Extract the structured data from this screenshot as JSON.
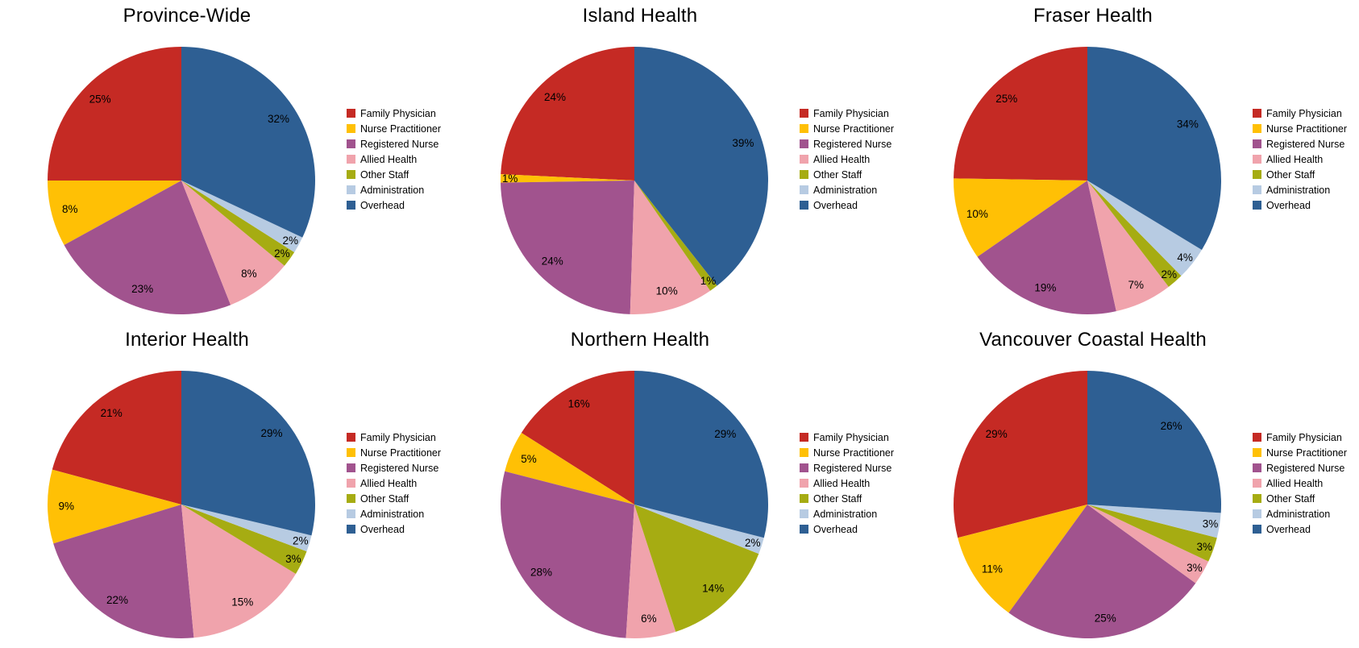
{
  "chart_data": {
    "type": "pie",
    "layout": "2x3 grid of pies, each with legend on the right, slices start at 12 o'clock and run counter-clockwise in legend order, no visible axis or grid, white background",
    "percent_label_suffix": "%",
    "categories": [
      "Family Physician",
      "Nurse Practitioner",
      "Registered Nurse",
      "Allied Health",
      "Other Staff",
      "Administration",
      "Overhead"
    ],
    "colors": [
      "#C52A24",
      "#FFC005",
      "#A1538E",
      "#F0A3AC",
      "#A6AC12",
      "#B7CBE2",
      "#2E5F93"
    ],
    "legend_position": "right",
    "charts": [
      {
        "title": "Province-Wide",
        "values": [
          25,
          8,
          23,
          8,
          2,
          2,
          32
        ]
      },
      {
        "title": "Island Health",
        "values": [
          24,
          1,
          24,
          10,
          1,
          0,
          39
        ]
      },
      {
        "title": "Fraser Health",
        "values": [
          25,
          10,
          19,
          7,
          2,
          4,
          34
        ]
      },
      {
        "title": "Interior Health",
        "values": [
          21,
          9,
          22,
          15,
          3,
          2,
          29
        ]
      },
      {
        "title": "Northern Health",
        "values": [
          16,
          5,
          28,
          6,
          14,
          2,
          29
        ]
      },
      {
        "title": "Vancouver Coastal Health",
        "values": [
          29,
          11,
          25,
          3,
          3,
          3,
          26
        ]
      }
    ]
  }
}
